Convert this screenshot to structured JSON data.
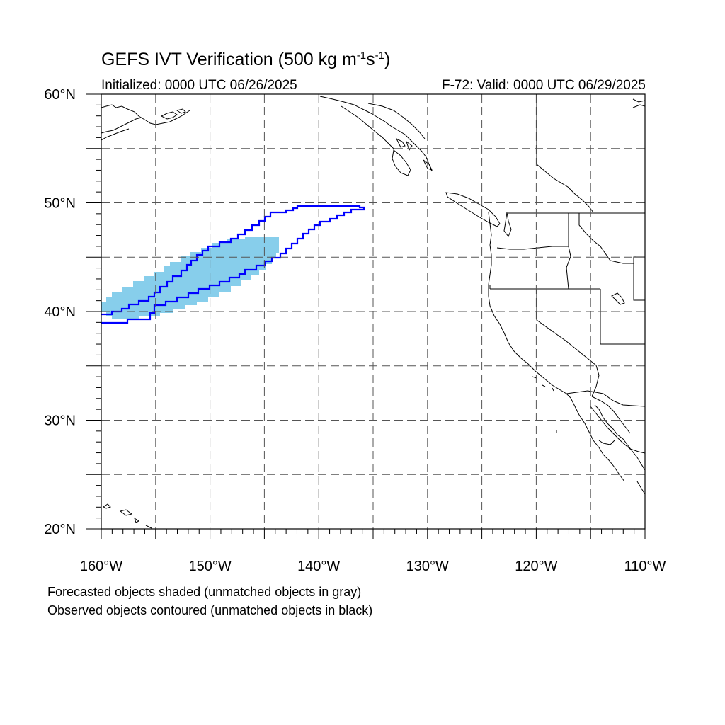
{
  "title": {
    "main": "GEFS IVT Verification (500 kg m",
    "sup1": "-1",
    "mid": "s",
    "sup2": "-1",
    "end": ")"
  },
  "subtitle": {
    "initialized": "Initialized: 0000 UTC 06/26/2025",
    "valid": "F-72: Valid: 0000 UTC 06/29/2025"
  },
  "map": {
    "lon_range": [
      -160,
      -110
    ],
    "lat_range": [
      20,
      60
    ],
    "grid": "dashed",
    "lon_ticks": [
      {
        "value": -160,
        "label": "160°W"
      },
      {
        "value": -150,
        "label": "150°W"
      },
      {
        "value": -140,
        "label": "140°W"
      },
      {
        "value": -130,
        "label": "130°W"
      },
      {
        "value": -120,
        "label": "120°W"
      },
      {
        "value": -110,
        "label": "110°W"
      }
    ],
    "lat_ticks": [
      {
        "value": 20,
        "label": "20°N"
      },
      {
        "value": 30,
        "label": "30°N"
      },
      {
        "value": 40,
        "label": "40°N"
      },
      {
        "value": 50,
        "label": "50°N"
      },
      {
        "value": 60,
        "label": "60°N"
      }
    ],
    "colors": {
      "forecast_fill": "#87ceeb",
      "observed_contour": "#0000ff",
      "coastline": "#000000",
      "grid": "#555555"
    }
  },
  "captions": {
    "line1": "Forecasted objects shaded (unmatched objects in gray)",
    "line2": "Observed objects contoured (unmatched objects in black)"
  }
}
